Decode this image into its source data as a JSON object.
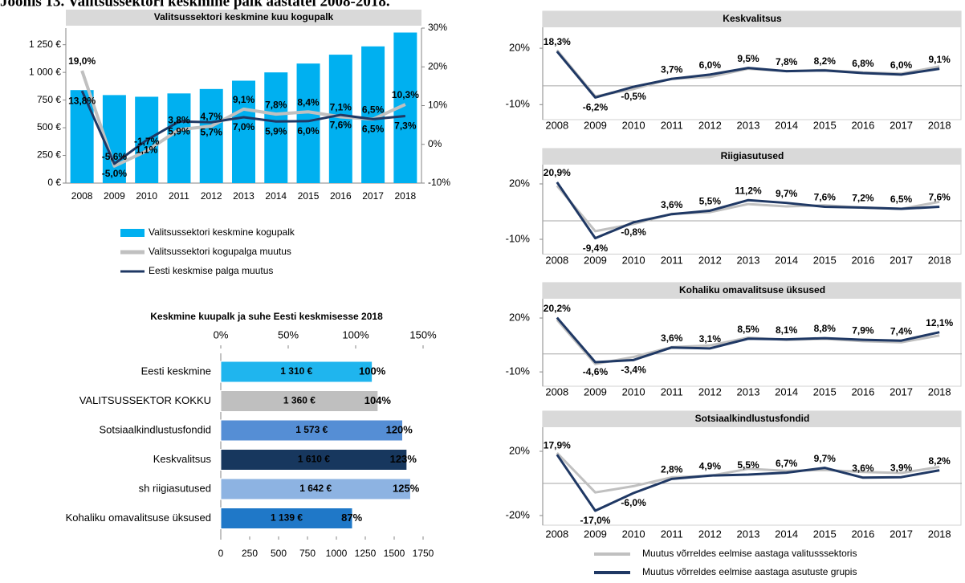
{
  "header": {
    "title": "Joonis 13. Valitsussektori keskmine palk aastatel 2008-2018."
  },
  "chart_data": [
    {
      "type": "combo",
      "title": "Valitsussektori keskmine kuu kogupalk",
      "categories": [
        "2008",
        "2009",
        "2010",
        "2011",
        "2012",
        "2013",
        "2014",
        "2015",
        "2016",
        "2017",
        "2018"
      ],
      "series": [
        {
          "name": "Valitsussektori keskmine kogupalk",
          "type": "bar",
          "color": "#00b0f0",
          "values": [
            840,
            795,
            780,
            810,
            850,
            925,
            1000,
            1080,
            1160,
            1235,
            1360
          ]
        },
        {
          "name": "Valitsussektori kogupalga muutus",
          "type": "line",
          "axis": "y2",
          "color": "#c0c0c0",
          "values": [
            19.0,
            -5.6,
            -1.7,
            3.8,
            4.7,
            9.1,
            7.8,
            8.4,
            7.1,
            6.5,
            10.3
          ],
          "value_labels": [
            "19,0%",
            "-5,6%",
            "-1,7%",
            "3,8%",
            "4,7%",
            "9,1%",
            "7,8%",
            "8,4%",
            "7,1%",
            "6,5%",
            "10,3%"
          ]
        },
        {
          "name": "Eesti keskmise palga muutus",
          "type": "line",
          "axis": "y2",
          "color": "#1f3864",
          "values": [
            13.8,
            -5.0,
            1.1,
            5.9,
            5.7,
            7.0,
            5.9,
            6.0,
            7.6,
            6.5,
            7.3
          ],
          "value_labels": [
            "13,8%",
            "-5,0%",
            "1,1%",
            "5,9%",
            "5,7%",
            "7,0%",
            "5,9%",
            "6,0%",
            "7,6%",
            "6,5%",
            "7,3%"
          ]
        }
      ],
      "ylim": [
        0,
        1400
      ],
      "yticks": [
        {
          "value": 0,
          "label": "0 €"
        },
        {
          "value": 250,
          "label": "250 €"
        },
        {
          "value": 500,
          "label": "500 €"
        },
        {
          "value": 750,
          "label": "750 €"
        },
        {
          "value": 1000,
          "label": "1 000 €"
        },
        {
          "value": 1250,
          "label": "1 250 €"
        }
      ],
      "y2lim": [
        -10,
        30
      ],
      "y2ticks": [
        {
          "value": -10,
          "label": "-10%"
        },
        {
          "value": 0,
          "label": "0%"
        },
        {
          "value": 10,
          "label": "10%"
        },
        {
          "value": 20,
          "label": "20%"
        },
        {
          "value": 30,
          "label": "30%"
        }
      ]
    },
    {
      "type": "hbar",
      "title": "Keskmine kuupalk ja suhe Eesti keskmisesse 2018",
      "categories": [
        "Eesti keskmine",
        "VALITSUSSEKTOR KOKKU",
        "Sotsiaalkindlustusfondid",
        "Keskvalitsus",
        "sh riigiasutused",
        "Kohaliku omavalitsuse üksused"
      ],
      "values": [
        1310,
        1360,
        1573,
        1610,
        1642,
        1139
      ],
      "value_labels": [
        "1 310 €",
        "1 360 €",
        "1 573 €",
        "1 610 €",
        "1 642 €",
        "1 139 €"
      ],
      "colors": [
        "#1fb5ee",
        "#bfbfbf",
        "#558ed5",
        "#17375e",
        "#8db3e2",
        "#1f78c8"
      ],
      "label_colors": [
        "#ffffff",
        "#000000",
        "#000000",
        "#ffffff",
        "#000000",
        "#ffffff"
      ],
      "ratios": [
        100,
        104,
        120,
        123,
        125,
        87
      ],
      "ratio_labels": [
        "100%",
        "104%",
        "120%",
        "123%",
        "125%",
        "87%"
      ],
      "xlim": [
        0,
        1750
      ],
      "xticks": [
        0,
        250,
        500,
        750,
        1000,
        1250,
        1500,
        1750
      ],
      "x2lim": [
        0,
        150
      ],
      "x2ticks": [
        {
          "value": 0,
          "label": "0%"
        },
        {
          "value": 50,
          "label": "50%"
        },
        {
          "value": 100,
          "label": "100%"
        },
        {
          "value": 150,
          "label": "150%"
        }
      ]
    },
    {
      "type": "line",
      "title": "Keskvalitsus",
      "categories": [
        "2008",
        "2009",
        "2010",
        "2011",
        "2012",
        "2013",
        "2014",
        "2015",
        "2016",
        "2017",
        "2018"
      ],
      "series": [
        {
          "color": "#c0c0c0",
          "values": [
            19.0,
            -5.6,
            -1.7,
            3.8,
            4.7,
            9.1,
            7.8,
            8.4,
            7.1,
            6.5,
            10.3
          ]
        },
        {
          "color": "#1f3864",
          "values": [
            18.3,
            -6.2,
            -0.5,
            3.7,
            6.0,
            9.5,
            7.8,
            8.2,
            6.8,
            6.0,
            9.1
          ],
          "value_labels": [
            "18,3%",
            "-6,2%",
            "-0,5%",
            "3,7%",
            "6,0%",
            "9,5%",
            "7,8%",
            "8,2%",
            "6,8%",
            "6,0%",
            "9,1%"
          ]
        }
      ],
      "ylim": [
        -18,
        32
      ],
      "yticks": [
        {
          "value": -10,
          "label": "-10%"
        },
        {
          "value": 20,
          "label": "20%"
        }
      ]
    },
    {
      "type": "line",
      "title": "Riigiasutused",
      "categories": [
        "2008",
        "2009",
        "2010",
        "2011",
        "2012",
        "2013",
        "2014",
        "2015",
        "2016",
        "2017",
        "2018"
      ],
      "series": [
        {
          "color": "#c0c0c0",
          "values": [
            19.0,
            -5.6,
            -1.7,
            3.8,
            4.7,
            9.1,
            7.8,
            8.4,
            7.1,
            6.5,
            10.3
          ]
        },
        {
          "color": "#1f3864",
          "values": [
            20.9,
            -9.4,
            -0.8,
            3.6,
            5.5,
            11.2,
            9.7,
            7.6,
            7.2,
            6.5,
            7.6
          ],
          "value_labels": [
            "20,9%",
            "-9,4%",
            "-0,8%",
            "3,6%",
            "5,5%",
            "11,2%",
            "9,7%",
            "7,6%",
            "7,2%",
            "6,5%",
            "7,6%"
          ]
        }
      ],
      "ylim": [
        -18,
        32
      ],
      "yticks": [
        {
          "value": -10,
          "label": "-10%"
        },
        {
          "value": 20,
          "label": "20%"
        }
      ]
    },
    {
      "type": "line",
      "title": "Kohaliku omavalitsuse üksused",
      "categories": [
        "2008",
        "2009",
        "2010",
        "2011",
        "2012",
        "2013",
        "2014",
        "2015",
        "2016",
        "2017",
        "2018"
      ],
      "series": [
        {
          "color": "#c0c0c0",
          "values": [
            19.0,
            -5.6,
            -1.7,
            3.8,
            4.7,
            9.1,
            7.8,
            8.4,
            7.1,
            6.5,
            10.3
          ]
        },
        {
          "color": "#1f3864",
          "values": [
            20.2,
            -4.6,
            -3.4,
            3.6,
            3.1,
            8.5,
            8.1,
            8.8,
            7.9,
            7.4,
            12.1
          ],
          "value_labels": [
            "20,2%",
            "-4,6%",
            "-3,4%",
            "3,6%",
            "3,1%",
            "8,5%",
            "8,1%",
            "8,8%",
            "7,9%",
            "7,4%",
            "12,1%"
          ]
        }
      ],
      "ylim": [
        -18,
        32
      ],
      "yticks": [
        {
          "value": -10,
          "label": "-10%"
        },
        {
          "value": 20,
          "label": "20%"
        }
      ]
    },
    {
      "type": "line",
      "title": "Sotsiaalkindlustusfondid",
      "categories": [
        "2008",
        "2009",
        "2010",
        "2011",
        "2012",
        "2013",
        "2014",
        "2015",
        "2016",
        "2017",
        "2018"
      ],
      "series": [
        {
          "name": "Muutus võrreldes eelmise aastaga valitusssektoris",
          "color": "#c0c0c0",
          "values": [
            19.0,
            -5.6,
            -1.7,
            3.8,
            4.7,
            9.1,
            7.8,
            8.4,
            7.1,
            6.5,
            10.3
          ]
        },
        {
          "name": "Muutus võrreldes eelmise aastaga asutuste grupis",
          "color": "#1f3864",
          "values": [
            17.9,
            -17.0,
            -6.0,
            2.8,
            4.9,
            5.5,
            6.7,
            9.7,
            3.6,
            3.9,
            8.2
          ],
          "value_labels": [
            "17,9%",
            "-17,0%",
            "-6,0%",
            "2,8%",
            "4,9%",
            "5,5%",
            "6,7%",
            "9,7%",
            "3,6%",
            "3,9%",
            "8,2%"
          ]
        }
      ],
      "ylim": [
        -26,
        34
      ],
      "yticks": [
        {
          "value": -20,
          "label": "-20%"
        },
        {
          "value": 20,
          "label": "20%"
        }
      ]
    }
  ]
}
